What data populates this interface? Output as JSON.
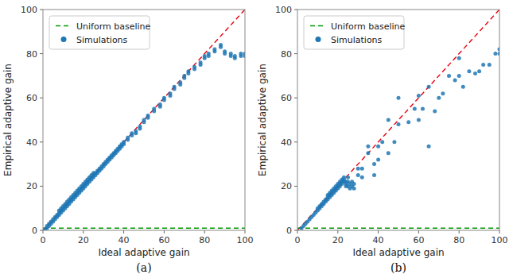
{
  "chart_data": [
    {
      "type": "scatter",
      "xlabel": "Ideal adaptive gain",
      "ylabel": "Empirical adaptive gain",
      "annotations": [
        "(a)"
      ],
      "xlim": [
        0,
        100
      ],
      "ylim": [
        0,
        100
      ],
      "xticks": [
        0,
        20,
        40,
        60,
        80,
        100
      ],
      "yticks": [
        0,
        20,
        40,
        60,
        80,
        100
      ],
      "grid": false,
      "legend": "upper left",
      "series": [
        {
          "type": "line",
          "color": "#e8000b",
          "line_style": "dashed",
          "x": [
            0,
            100
          ],
          "values": [
            0,
            100
          ]
        },
        {
          "name": "Uniform baseline",
          "type": "line",
          "color": "#009900",
          "line_style": "dashed",
          "x": [
            0,
            100
          ],
          "values": [
            1.0,
            1.0
          ]
        },
        {
          "name": "Simulations",
          "type": "scatter",
          "color": "#1f77b4",
          "marker": "circle",
          "x": [
            1,
            2,
            2,
            3,
            3,
            4,
            4,
            5,
            5,
            6,
            6,
            7,
            7,
            8,
            8,
            8,
            9,
            9,
            9,
            10,
            10,
            10,
            11,
            11,
            11,
            12,
            12,
            12,
            13,
            13,
            13,
            14,
            14,
            14,
            15,
            15,
            15,
            16,
            16,
            16,
            17,
            17,
            17,
            18,
            18,
            18,
            19,
            19,
            19,
            20,
            20,
            20,
            21,
            21,
            21,
            22,
            22,
            22,
            23,
            23,
            23,
            24,
            24,
            24,
            25,
            25,
            25,
            26,
            26,
            27,
            27,
            28,
            28,
            29,
            29,
            30,
            30,
            31,
            31,
            32,
            32,
            33,
            33,
            34,
            34,
            35,
            35,
            36,
            36,
            37,
            37,
            38,
            38,
            39,
            39,
            40,
            40,
            42,
            42,
            44,
            44,
            46,
            46,
            48,
            48,
            50,
            50,
            52,
            52,
            55,
            55,
            58,
            58,
            60,
            60,
            63,
            63,
            65,
            65,
            68,
            68,
            70,
            70,
            72,
            72,
            75,
            75,
            78,
            78,
            80,
            80,
            82,
            82,
            85,
            85,
            88,
            88,
            90,
            90,
            93,
            93,
            95,
            95,
            98,
            98,
            100,
            100
          ],
          "values": [
            0.5,
            1,
            2,
            2,
            3,
            3,
            4,
            4,
            5,
            5,
            6,
            6,
            7,
            7,
            8,
            9,
            8,
            9,
            10,
            9,
            10,
            11,
            10,
            11,
            12,
            11,
            12,
            13,
            12,
            13,
            14,
            13,
            14,
            15,
            14,
            15,
            16,
            15,
            16,
            17,
            16,
            17,
            18,
            17,
            18,
            19,
            18,
            19,
            20,
            19,
            20,
            21,
            20,
            21,
            22,
            21,
            22,
            23,
            22,
            23,
            24,
            23,
            24,
            25,
            24,
            25,
            26,
            25,
            26,
            26,
            27,
            27,
            28,
            28,
            29,
            29,
            30,
            30,
            31,
            31,
            32,
            32,
            33,
            33,
            34,
            34,
            35,
            35,
            36,
            36,
            37,
            37,
            38,
            38,
            39,
            39,
            40,
            41,
            42,
            43,
            44,
            44,
            45,
            46,
            47,
            49,
            50,
            51,
            52,
            54,
            55,
            56,
            57,
            59,
            60,
            61,
            62,
            64,
            65,
            66,
            67,
            69,
            70,
            71,
            72,
            73,
            74,
            75,
            76,
            78,
            79,
            79,
            80,
            81,
            82,
            83,
            84,
            80,
            81,
            79,
            80,
            78,
            79,
            79,
            80,
            79,
            80
          ]
        }
      ]
    },
    {
      "type": "scatter",
      "xlabel": "Ideal adaptive gain",
      "ylabel": "Empirical adaptive gain",
      "annotations": [
        "(b)"
      ],
      "xlim": [
        0,
        100
      ],
      "ylim": [
        0,
        100
      ],
      "xticks": [
        0,
        20,
        40,
        60,
        80,
        100
      ],
      "yticks": [
        0,
        20,
        40,
        60,
        80,
        100
      ],
      "grid": false,
      "legend": "upper left",
      "series": [
        {
          "type": "line",
          "color": "#e8000b",
          "line_style": "dashed",
          "x": [
            0,
            100
          ],
          "values": [
            0,
            100
          ]
        },
        {
          "name": "Uniform baseline",
          "type": "line",
          "color": "#009900",
          "line_style": "dashed",
          "x": [
            0,
            100
          ],
          "values": [
            1.0,
            1.0
          ]
        },
        {
          "name": "Simulations",
          "type": "scatter",
          "color": "#1f77b4",
          "marker": "circle",
          "x": [
            2,
            3,
            4,
            5,
            6,
            7,
            8,
            9,
            10,
            10,
            11,
            11,
            12,
            12,
            13,
            13,
            14,
            14,
            15,
            15,
            15,
            16,
            16,
            16,
            17,
            17,
            17,
            18,
            18,
            18,
            19,
            19,
            19,
            20,
            20,
            20,
            21,
            21,
            21,
            22,
            22,
            22,
            23,
            23,
            23,
            24,
            24,
            24,
            25,
            25,
            25,
            26,
            26,
            27,
            27,
            28,
            28,
            30,
            30,
            32,
            32,
            35,
            35,
            38,
            38,
            40,
            40,
            42,
            45,
            45,
            48,
            50,
            50,
            55,
            58,
            60,
            60,
            62,
            65,
            65,
            68,
            70,
            72,
            75,
            78,
            80,
            80,
            82,
            85,
            88,
            90,
            92,
            95,
            98,
            100,
            100
          ],
          "values": [
            1,
            2,
            3,
            4,
            5,
            6,
            7,
            8,
            9,
            10,
            10,
            11,
            11,
            12,
            12,
            13,
            13,
            14,
            14,
            15,
            16,
            15,
            16,
            17,
            16,
            17,
            18,
            17,
            18,
            19,
            18,
            19,
            20,
            19,
            20,
            21,
            20,
            21,
            22,
            21,
            22,
            23,
            22,
            23,
            24,
            20,
            21,
            22,
            20,
            22,
            24,
            19,
            21,
            20,
            22,
            19,
            21,
            25,
            28,
            24,
            28,
            35,
            38,
            25,
            30,
            38,
            32,
            40,
            35,
            50,
            40,
            48,
            60,
            49,
            55,
            50,
            61,
            55,
            38,
            65,
            54,
            60,
            62,
            70,
            68,
            70,
            78,
            65,
            72,
            71,
            72,
            75,
            75,
            80,
            80,
            82
          ]
        }
      ]
    }
  ]
}
